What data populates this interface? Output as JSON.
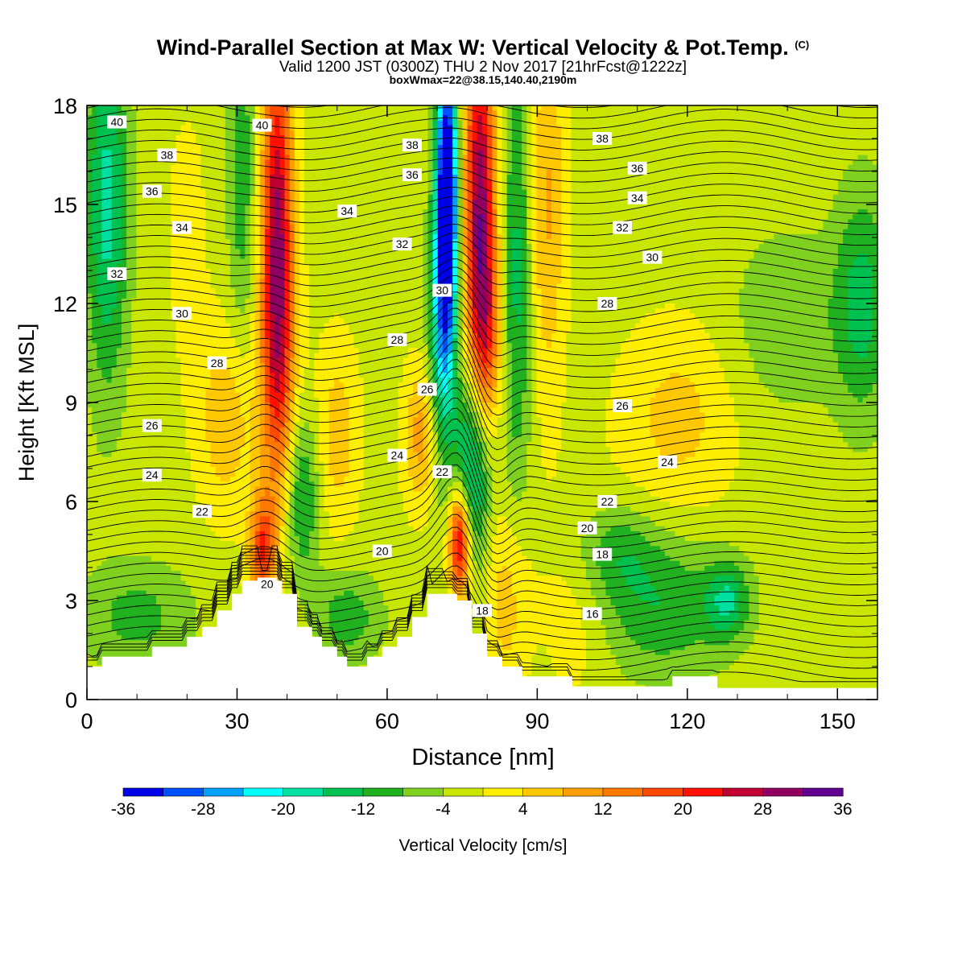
{
  "header": {
    "title": "Wind-Parallel Section at Max W: Vertical Velocity & Pot.Temp.",
    "copyright": "(C)",
    "valid_line": "Valid 1200 JST (0300Z) THU 2 Nov 2017 [21hrFcst@1222z]",
    "box_line": "boxWmax=22@38.15,140.40,2190m"
  },
  "colors": {
    "palette": [
      "#0000e6",
      "#0050ff",
      "#00a0ff",
      "#00ffff",
      "#00e0a0",
      "#00c050",
      "#20b020",
      "#80d020",
      "#c8e600",
      "#ffee00",
      "#ffc800",
      "#ffa000",
      "#ff7800",
      "#ff4800",
      "#ff1000",
      "#c00030",
      "#900060",
      "#600090"
    ],
    "background_field": "#d6ea00",
    "terrain": "#ffffff",
    "contour": "#000000"
  },
  "chart_data": {
    "type": "contour",
    "xlabel": "Distance [nm]",
    "ylabel": "Height [Kft MSL]",
    "xlim": [
      0,
      158
    ],
    "ylim": [
      0,
      18
    ],
    "x_ticks": [
      0,
      30,
      60,
      90,
      120,
      150
    ],
    "y_ticks": [
      0,
      3,
      6,
      9,
      12,
      15,
      18
    ],
    "colorbar": {
      "label": "Vertical Velocity [cm/s]",
      "min": -36,
      "max": 36,
      "step": 4,
      "tick_labels": [
        "-36",
        "-28",
        "-20",
        "-12",
        "-4",
        "4",
        "12",
        "20",
        "28",
        "36"
      ],
      "tick_values": [
        -36,
        -28,
        -20,
        -12,
        -4,
        4,
        12,
        20,
        28,
        36
      ]
    },
    "w_features": [
      {
        "x": 38,
        "y": 14,
        "sx": 2.2,
        "sy": 4.5,
        "w": 30
      },
      {
        "x": 38.5,
        "y": 9.5,
        "sx": 3,
        "sy": 3,
        "w": 8
      },
      {
        "x": 35,
        "y": 4.5,
        "sx": 1.8,
        "sy": 1.2,
        "w": 20
      },
      {
        "x": 31,
        "y": 16,
        "sx": 2,
        "sy": 4,
        "w": -9
      },
      {
        "x": 43,
        "y": 6.2,
        "sx": 2.5,
        "sy": 1.8,
        "w": -12
      },
      {
        "x": 72,
        "y": 15.5,
        "sx": 1.5,
        "sy": 3,
        "w": -40
      },
      {
        "x": 71,
        "y": 11,
        "sx": 2,
        "sy": 3,
        "w": -18
      },
      {
        "x": 77,
        "y": 7,
        "sx": 2.5,
        "sy": 2,
        "w": -20
      },
      {
        "x": 78.5,
        "y": 15,
        "sx": 2.2,
        "sy": 4,
        "w": 32
      },
      {
        "x": 80,
        "y": 11,
        "sx": 2,
        "sy": 2,
        "w": 12
      },
      {
        "x": 74.5,
        "y": 4.8,
        "sx": 1.5,
        "sy": 1.2,
        "w": 30
      },
      {
        "x": 67,
        "y": 8,
        "sx": 2.5,
        "sy": 1.5,
        "w": 12
      },
      {
        "x": 86,
        "y": 13,
        "sx": 2,
        "sy": 5,
        "w": -12
      },
      {
        "x": 92,
        "y": 15,
        "sx": 2.5,
        "sy": 4,
        "w": 10
      },
      {
        "x": 4,
        "y": 15,
        "sx": 3,
        "sy": 4,
        "w": -16
      },
      {
        "x": 20,
        "y": 14,
        "sx": 3,
        "sy": 3,
        "w": 3
      },
      {
        "x": 28,
        "y": 8.5,
        "sx": 4,
        "sy": 2,
        "w": 9
      },
      {
        "x": 50,
        "y": 8,
        "sx": 3,
        "sy": 2,
        "w": 8
      },
      {
        "x": 10,
        "y": 2.5,
        "sx": 8,
        "sy": 1.2,
        "w": -8
      },
      {
        "x": 52,
        "y": 2.5,
        "sx": 5,
        "sy": 1,
        "w": -9
      },
      {
        "x": 105,
        "y": 4.5,
        "sx": 6,
        "sy": 1,
        "w": -8
      },
      {
        "x": 115,
        "y": 2.8,
        "sx": 10,
        "sy": 1.5,
        "w": -10
      },
      {
        "x": 128,
        "y": 3,
        "sx": 3,
        "sy": 0.8,
        "w": -12
      },
      {
        "x": 140,
        "y": 11.5,
        "sx": 8,
        "sy": 2,
        "w": -6
      },
      {
        "x": 155,
        "y": 12,
        "sx": 4,
        "sy": 2.5,
        "w": -12
      },
      {
        "x": 118,
        "y": 8.5,
        "sx": 8,
        "sy": 2,
        "w": 7
      },
      {
        "x": 98,
        "y": 3,
        "sx": 5,
        "sy": 2,
        "w": 5
      },
      {
        "x": 84,
        "y": 3,
        "sx": 3,
        "sy": 2,
        "w": 8
      },
      {
        "x": 38,
        "y": 1.5,
        "sx": 4,
        "sy": 1,
        "w": 5
      }
    ],
    "terrain_profile": {
      "x": [
        0,
        3,
        3,
        13,
        13,
        20,
        20,
        23,
        23,
        26,
        26,
        29,
        29,
        31,
        31,
        39,
        39,
        42,
        42,
        45,
        45,
        47,
        47,
        50,
        50,
        52,
        52,
        56,
        56,
        59,
        59,
        62,
        62,
        65,
        65,
        68,
        68,
        70,
        70,
        74,
        74,
        77,
        77,
        80,
        80,
        83,
        83,
        87,
        87,
        90,
        90,
        97,
        97,
        105,
        105,
        117,
        117,
        123,
        123,
        126,
        126,
        136,
        136,
        158
      ],
      "y": [
        1.0,
        1.0,
        1.3,
        1.3,
        1.6,
        1.6,
        1.9,
        1.9,
        2.2,
        2.2,
        2.7,
        2.7,
        3.2,
        3.2,
        3.6,
        3.6,
        3.2,
        3.2,
        2.2,
        2.2,
        1.9,
        1.9,
        1.6,
        1.6,
        1.3,
        1.3,
        1.0,
        1.0,
        1.3,
        1.3,
        1.6,
        1.6,
        1.9,
        1.9,
        2.5,
        2.5,
        3.2,
        3.2,
        3.2,
        3.2,
        3.0,
        3.0,
        2.0,
        2.0,
        1.3,
        1.3,
        1.0,
        1.0,
        0.7,
        0.7,
        0.7,
        0.7,
        0.4,
        0.4,
        0.4,
        0.4,
        0.7,
        0.7,
        0.7,
        0.7,
        0.35,
        0.35,
        0.35,
        0.35
      ]
    },
    "theta_contour_labels": [
      {
        "text": "40",
        "x": 6,
        "y": 17.5
      },
      {
        "text": "40",
        "x": 35,
        "y": 17.4
      },
      {
        "text": "38",
        "x": 16,
        "y": 16.5
      },
      {
        "text": "38",
        "x": 65,
        "y": 16.8
      },
      {
        "text": "38",
        "x": 103,
        "y": 17.0
      },
      {
        "text": "36",
        "x": 13,
        "y": 15.4
      },
      {
        "text": "36",
        "x": 65,
        "y": 15.9
      },
      {
        "text": "36",
        "x": 110,
        "y": 16.1
      },
      {
        "text": "34",
        "x": 19,
        "y": 14.3
      },
      {
        "text": "34",
        "x": 52,
        "y": 14.8
      },
      {
        "text": "34",
        "x": 110,
        "y": 15.2
      },
      {
        "text": "32",
        "x": 6,
        "y": 12.9
      },
      {
        "text": "32",
        "x": 63,
        "y": 13.8
      },
      {
        "text": "32",
        "x": 107,
        "y": 14.3
      },
      {
        "text": "30",
        "x": 19,
        "y": 11.7
      },
      {
        "text": "30",
        "x": 71,
        "y": 12.4
      },
      {
        "text": "30",
        "x": 113,
        "y": 13.4
      },
      {
        "text": "28",
        "x": 26,
        "y": 10.2
      },
      {
        "text": "28",
        "x": 62,
        "y": 10.9
      },
      {
        "text": "28",
        "x": 104,
        "y": 12.0
      },
      {
        "text": "26",
        "x": 13,
        "y": 8.3
      },
      {
        "text": "26",
        "x": 68,
        "y": 9.4
      },
      {
        "text": "26",
        "x": 107,
        "y": 8.9
      },
      {
        "text": "24",
        "x": 13,
        "y": 6.8
      },
      {
        "text": "24",
        "x": 62,
        "y": 7.4
      },
      {
        "text": "24",
        "x": 116,
        "y": 7.2
      },
      {
        "text": "22",
        "x": 23,
        "y": 5.7
      },
      {
        "text": "22",
        "x": 71,
        "y": 6.9
      },
      {
        "text": "22",
        "x": 104,
        "y": 6.0
      },
      {
        "text": "20",
        "x": 59,
        "y": 4.5
      },
      {
        "text": "20",
        "x": 36,
        "y": 3.5
      },
      {
        "text": "20",
        "x": 100,
        "y": 5.2
      },
      {
        "text": "18",
        "x": 79,
        "y": 2.7
      },
      {
        "text": "18",
        "x": 103,
        "y": 4.4
      },
      {
        "text": "16",
        "x": 101,
        "y": 2.6
      }
    ]
  }
}
